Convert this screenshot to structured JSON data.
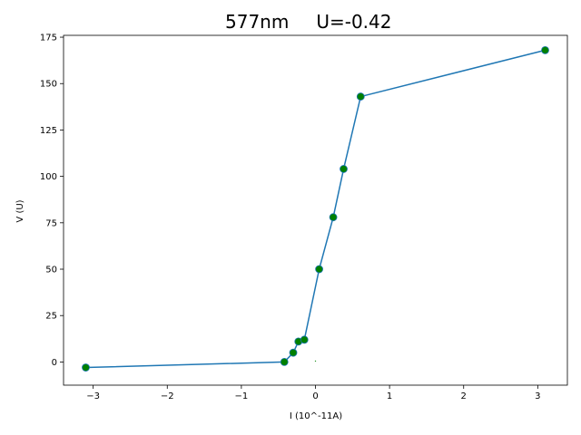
{
  "chart_data": {
    "type": "line",
    "title_wavelength": "577nm",
    "title_voltage": "U=-0.42",
    "xlabel": "I (10^-11A)",
    "ylabel": "V (U)",
    "xlim": [
      -3.4,
      3.4
    ],
    "ylim": [
      -12.5,
      176
    ],
    "xticks": [
      -3,
      -2,
      -1,
      0,
      1,
      2,
      3
    ],
    "xtick_labels": [
      "−3",
      "−2",
      "−1",
      "0",
      "1",
      "2",
      "3"
    ],
    "yticks": [
      0,
      25,
      50,
      75,
      100,
      125,
      150,
      175
    ],
    "ytick_labels": [
      "0",
      "25",
      "50",
      "75",
      "100",
      "125",
      "150",
      "175"
    ],
    "grid": false,
    "series": [
      {
        "x": [
          -3.1,
          -0.42,
          -0.3,
          -0.23,
          -0.15,
          0.05,
          0.24,
          0.38,
          0.61,
          3.1
        ],
        "y": [
          -3,
          0,
          5,
          11,
          12,
          50,
          78,
          104,
          143,
          168
        ],
        "line_color": "#1f77b4",
        "marker_color": "#008000"
      }
    ],
    "annotations": [
      {
        "type": "marker",
        "x": 0.0,
        "y": 0.5,
        "color": "#008000"
      }
    ]
  }
}
